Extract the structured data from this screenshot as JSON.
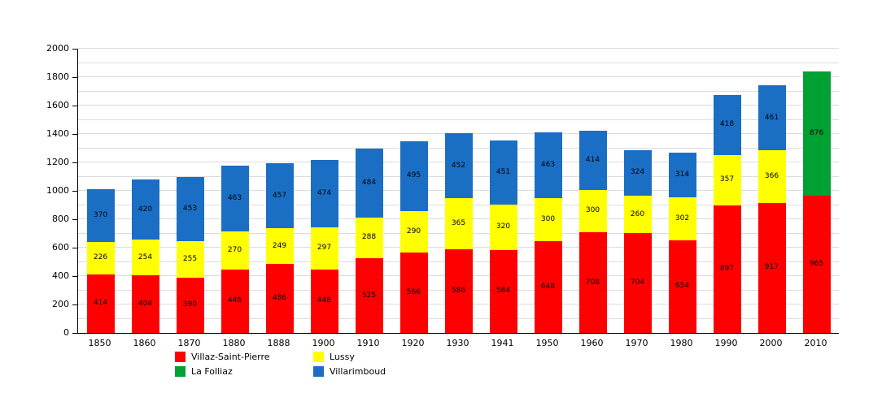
{
  "chart_data": {
    "type": "bar",
    "stacked": true,
    "title": "",
    "xlabel": "",
    "ylabel": "",
    "ylim": [
      0,
      2000
    ],
    "ytick_step": 200,
    "grid_step": 100,
    "grid": true,
    "legend_position": "bottom",
    "categories": [
      "1850",
      "1860",
      "1870",
      "1880",
      "1888",
      "1900",
      "1910",
      "1920",
      "1930",
      "1941",
      "1950",
      "1960",
      "1970",
      "1980",
      "1990",
      "2000",
      "2010"
    ],
    "series": [
      {
        "name": "Villaz-Saint-Pierre",
        "color": "#ff0000",
        "values": [
          414,
          404,
          390,
          446,
          486,
          448,
          525,
          566,
          586,
          584,
          648,
          708,
          704,
          654,
          897,
          917,
          965
        ]
      },
      {
        "name": "Lussy",
        "color": "#ffff00",
        "values": [
          226,
          254,
          255,
          270,
          249,
          297,
          288,
          290,
          365,
          320,
          300,
          300,
          260,
          302,
          357,
          366,
          null
        ]
      },
      {
        "name": "La Folliaz",
        "color": "#00a032",
        "values": [
          null,
          null,
          null,
          null,
          null,
          null,
          null,
          null,
          null,
          null,
          null,
          null,
          null,
          null,
          null,
          null,
          876
        ]
      },
      {
        "name": "Villarimboud",
        "color": "#1a6fc4",
        "values": [
          370,
          420,
          453,
          463,
          457,
          474,
          484,
          495,
          452,
          451,
          463,
          414,
          324,
          314,
          418,
          461,
          null
        ]
      }
    ],
    "legend_items": [
      {
        "label": "Villaz-Saint-Pierre",
        "color": "#ff0000"
      },
      {
        "label": "Lussy",
        "color": "#ffff00"
      },
      {
        "label": "La Folliaz",
        "color": "#00a032"
      },
      {
        "label": "Villarimboud",
        "color": "#1a6fc4"
      }
    ]
  }
}
